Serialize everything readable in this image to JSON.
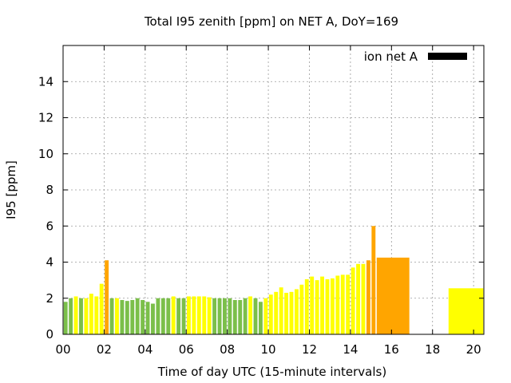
{
  "chart_data": {
    "type": "bar",
    "title": "Total I95 zenith [ppm] on NET A, DoY=169",
    "xlabel": "Time of day UTC (15-minute intervals)",
    "ylabel": "I95 [ppm]",
    "xlim": [
      0,
      20.5
    ],
    "ylim": [
      0,
      16
    ],
    "xticks": [
      "00",
      "02",
      "04",
      "06",
      "08",
      "10",
      "12",
      "14",
      "16",
      "18",
      "20"
    ],
    "xtick_values": [
      0,
      2,
      4,
      6,
      8,
      10,
      12,
      14,
      16,
      18,
      20
    ],
    "yticks": [
      "0",
      "2",
      "4",
      "6",
      "8",
      "10",
      "12",
      "14"
    ],
    "ytick_values": [
      0,
      2,
      4,
      6,
      8,
      10,
      12,
      14
    ],
    "grid": true,
    "legend": {
      "position": "top-right",
      "entries": [
        {
          "name": "ion net A",
          "color": "#000000"
        }
      ]
    },
    "colors": {
      "green": "#7bbf4a",
      "yellow": "#ffff00",
      "orange": "#ffa500"
    },
    "bar_width_hours": 0.25,
    "bars": [
      {
        "x": 0.0,
        "value": 1.8,
        "color": "green"
      },
      {
        "x": 0.25,
        "value": 2.0,
        "color": "green"
      },
      {
        "x": 0.5,
        "value": 2.1,
        "color": "yellow"
      },
      {
        "x": 0.75,
        "value": 2.0,
        "color": "green"
      },
      {
        "x": 1.0,
        "value": 2.0,
        "color": "yellow"
      },
      {
        "x": 1.25,
        "value": 2.25,
        "color": "yellow"
      },
      {
        "x": 1.5,
        "value": 2.1,
        "color": "yellow"
      },
      {
        "x": 1.75,
        "value": 2.8,
        "color": "yellow"
      },
      {
        "x": 2.0,
        "value": 4.1,
        "color": "orange"
      },
      {
        "x": 2.25,
        "value": 2.0,
        "color": "green"
      },
      {
        "x": 2.5,
        "value": 2.0,
        "color": "yellow"
      },
      {
        "x": 2.75,
        "value": 1.9,
        "color": "green"
      },
      {
        "x": 3.0,
        "value": 1.85,
        "color": "green"
      },
      {
        "x": 3.25,
        "value": 1.9,
        "color": "green"
      },
      {
        "x": 3.5,
        "value": 2.0,
        "color": "green"
      },
      {
        "x": 3.75,
        "value": 1.9,
        "color": "green"
      },
      {
        "x": 4.0,
        "value": 1.8,
        "color": "green"
      },
      {
        "x": 4.25,
        "value": 1.7,
        "color": "green"
      },
      {
        "x": 4.5,
        "value": 2.0,
        "color": "green"
      },
      {
        "x": 4.75,
        "value": 2.0,
        "color": "green"
      },
      {
        "x": 5.0,
        "value": 2.0,
        "color": "green"
      },
      {
        "x": 5.25,
        "value": 2.1,
        "color": "yellow"
      },
      {
        "x": 5.5,
        "value": 2.0,
        "color": "green"
      },
      {
        "x": 5.75,
        "value": 2.0,
        "color": "green"
      },
      {
        "x": 6.0,
        "value": 2.1,
        "color": "yellow"
      },
      {
        "x": 6.25,
        "value": 2.1,
        "color": "yellow"
      },
      {
        "x": 6.5,
        "value": 2.1,
        "color": "yellow"
      },
      {
        "x": 6.75,
        "value": 2.1,
        "color": "yellow"
      },
      {
        "x": 7.0,
        "value": 2.05,
        "color": "yellow"
      },
      {
        "x": 7.25,
        "value": 2.0,
        "color": "green"
      },
      {
        "x": 7.5,
        "value": 2.0,
        "color": "green"
      },
      {
        "x": 7.75,
        "value": 2.0,
        "color": "green"
      },
      {
        "x": 8.0,
        "value": 2.0,
        "color": "green"
      },
      {
        "x": 8.25,
        "value": 1.9,
        "color": "green"
      },
      {
        "x": 8.5,
        "value": 1.9,
        "color": "green"
      },
      {
        "x": 8.75,
        "value": 2.0,
        "color": "green"
      },
      {
        "x": 9.0,
        "value": 2.1,
        "color": "yellow"
      },
      {
        "x": 9.25,
        "value": 2.0,
        "color": "green"
      },
      {
        "x": 9.5,
        "value": 1.8,
        "color": "green"
      },
      {
        "x": 9.75,
        "value": 2.0,
        "color": "yellow"
      },
      {
        "x": 10.0,
        "value": 2.2,
        "color": "yellow"
      },
      {
        "x": 10.25,
        "value": 2.35,
        "color": "yellow"
      },
      {
        "x": 10.5,
        "value": 2.6,
        "color": "yellow"
      },
      {
        "x": 10.75,
        "value": 2.3,
        "color": "yellow"
      },
      {
        "x": 11.0,
        "value": 2.35,
        "color": "yellow"
      },
      {
        "x": 11.25,
        "value": 2.5,
        "color": "yellow"
      },
      {
        "x": 11.5,
        "value": 2.75,
        "color": "yellow"
      },
      {
        "x": 11.75,
        "value": 3.05,
        "color": "yellow"
      },
      {
        "x": 12.0,
        "value": 3.2,
        "color": "yellow"
      },
      {
        "x": 12.25,
        "value": 3.0,
        "color": "yellow"
      },
      {
        "x": 12.5,
        "value": 3.2,
        "color": "yellow"
      },
      {
        "x": 12.75,
        "value": 3.05,
        "color": "yellow"
      },
      {
        "x": 13.0,
        "value": 3.1,
        "color": "yellow"
      },
      {
        "x": 13.25,
        "value": 3.25,
        "color": "yellow"
      },
      {
        "x": 13.5,
        "value": 3.3,
        "color": "yellow"
      },
      {
        "x": 13.75,
        "value": 3.3,
        "color": "yellow"
      },
      {
        "x": 14.0,
        "value": 3.7,
        "color": "yellow"
      },
      {
        "x": 14.25,
        "value": 3.9,
        "color": "yellow"
      },
      {
        "x": 14.5,
        "value": 3.9,
        "color": "yellow"
      },
      {
        "x": 14.75,
        "value": 4.1,
        "color": "orange"
      },
      {
        "x": 15.0,
        "value": 6.0,
        "color": "orange"
      },
      {
        "x": 15.25,
        "value": 4.25,
        "color": "orange",
        "x_end": 16.9
      },
      {
        "x": 18.75,
        "value": 2.55,
        "color": "yellow",
        "x_end": 20.5
      }
    ]
  }
}
